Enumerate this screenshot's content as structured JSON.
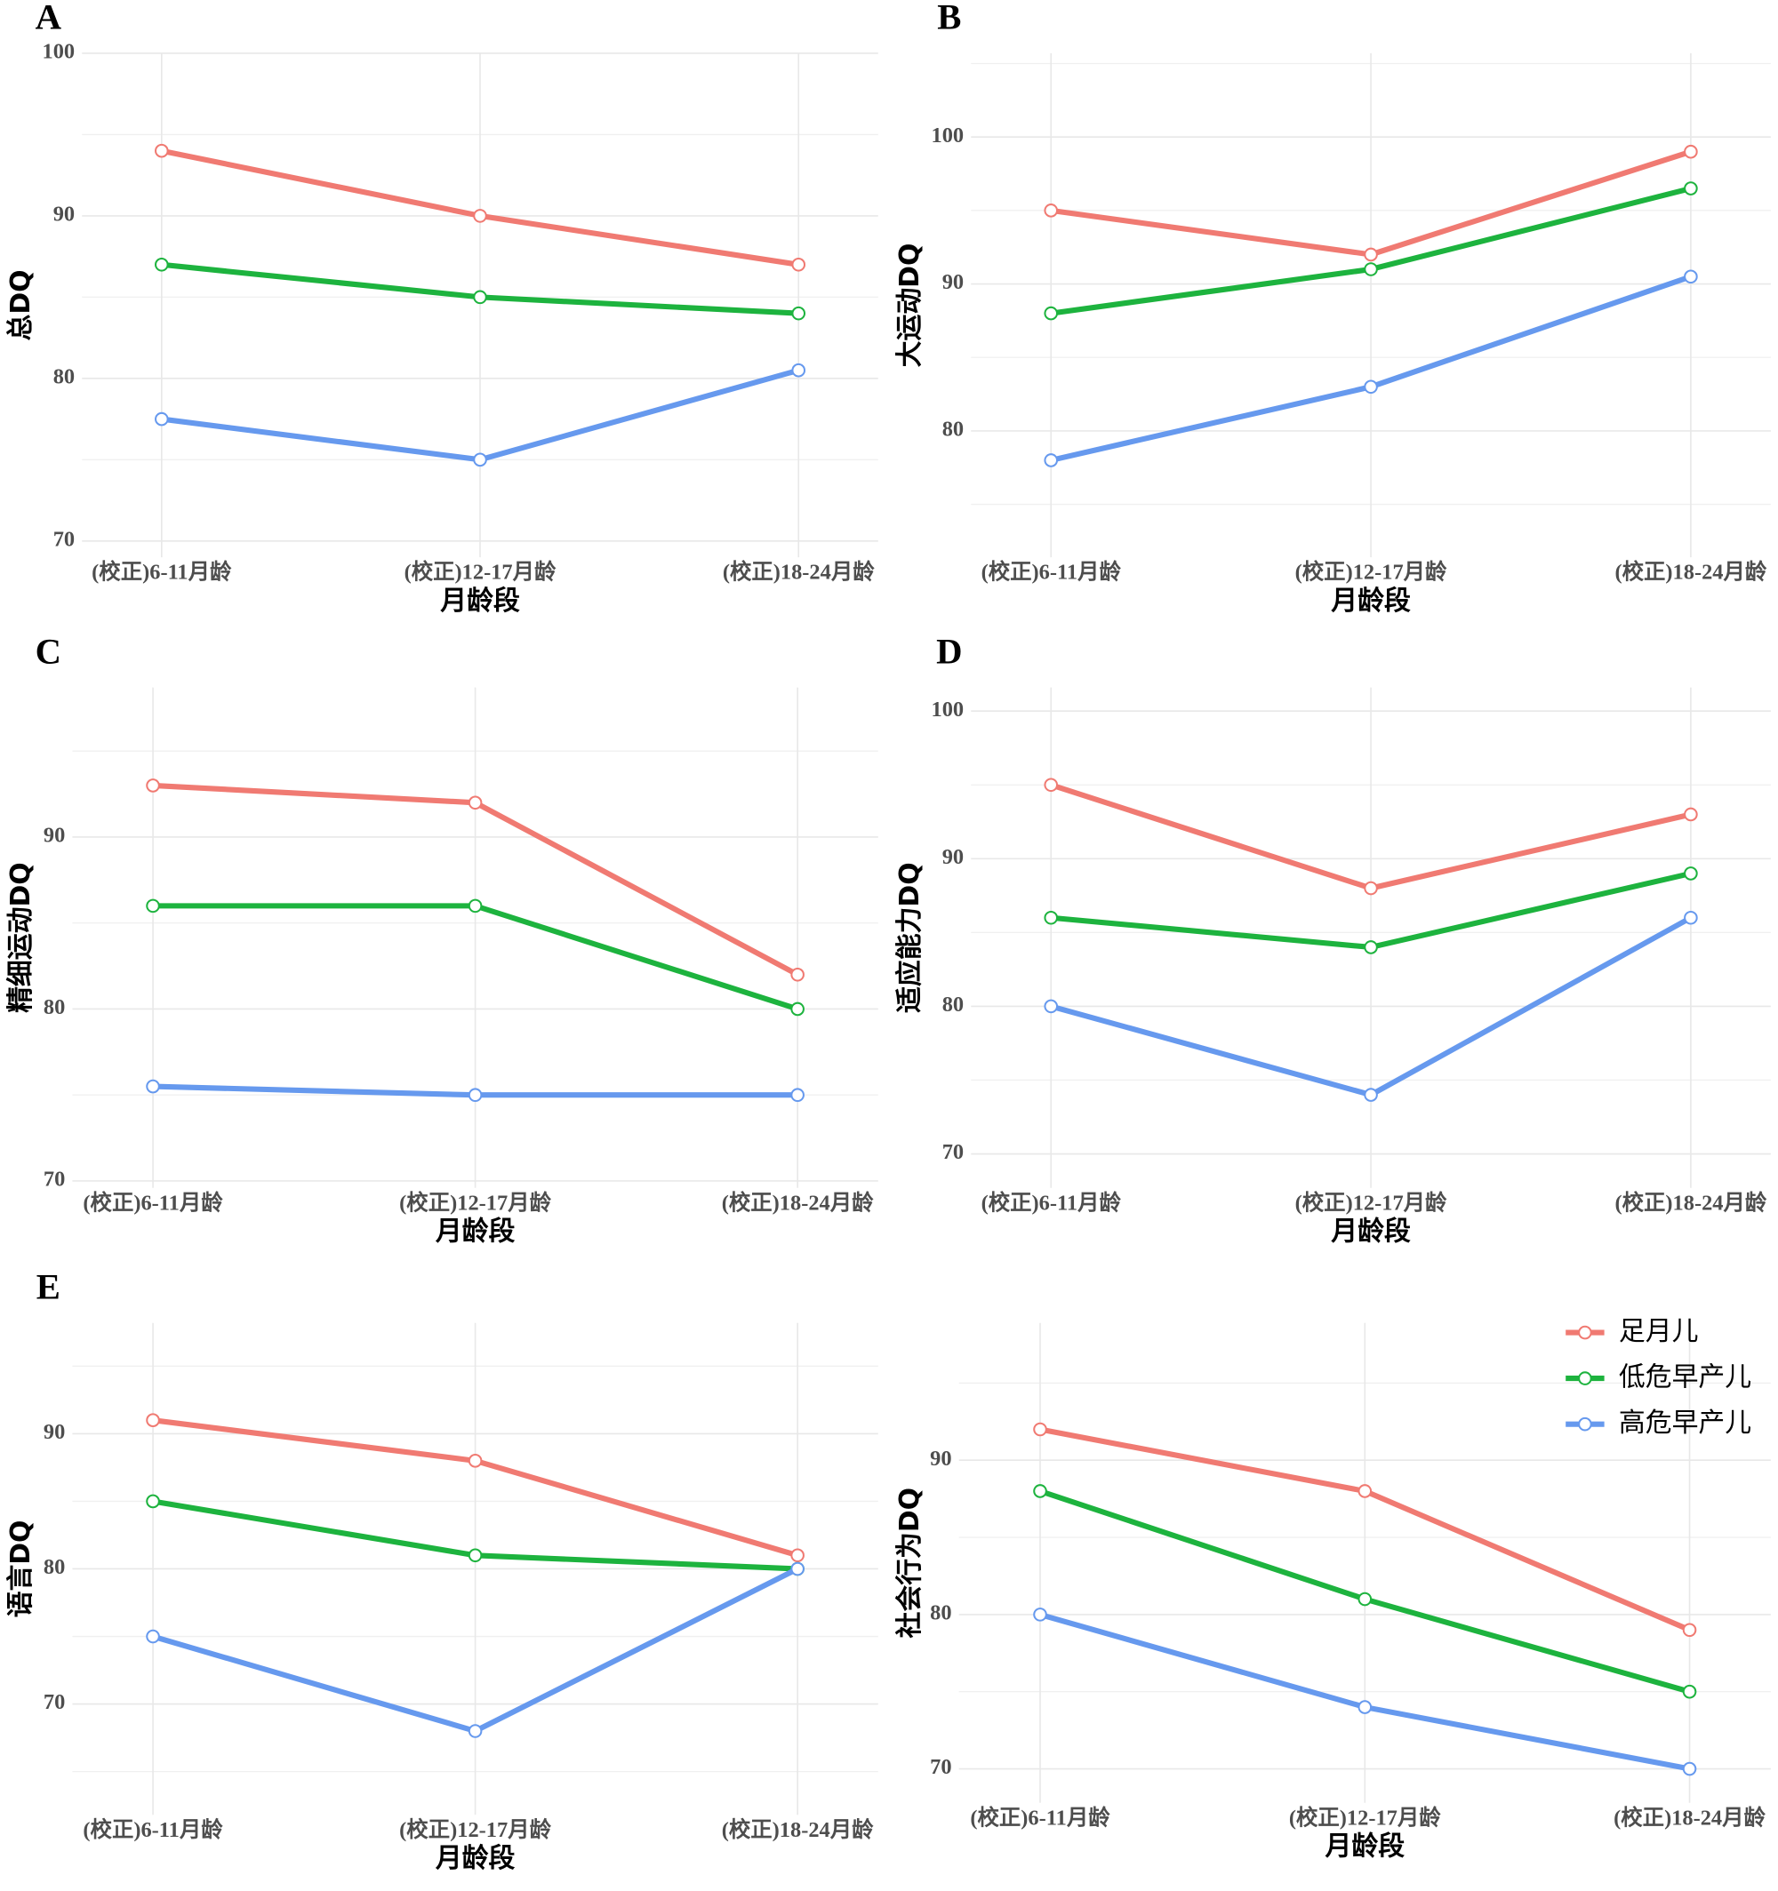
{
  "chart_data": [
    {
      "type": "line",
      "panel": "A",
      "x_label": "月龄段",
      "y_label": "总DQ",
      "categories": [
        "(校正)6-11月龄",
        "(校正)12-17月龄",
        "(校正)18-24月龄"
      ],
      "ylim": [
        69,
        100
      ],
      "yticks": [
        70,
        80,
        90,
        100
      ],
      "grid": true,
      "series": [
        {
          "name": "足月儿",
          "color": "#f07a72",
          "values": [
            94,
            90,
            87
          ]
        },
        {
          "name": "低危早产儿",
          "color": "#1db33e",
          "values": [
            87,
            85,
            84
          ]
        },
        {
          "name": "高危早产儿",
          "color": "#6699ee",
          "values": [
            77.5,
            75,
            80.5
          ]
        }
      ]
    },
    {
      "type": "line",
      "panel": "B",
      "x_label": "月龄段",
      "y_label": "大运动DQ",
      "categories": [
        "(校正)6-11月龄",
        "(校正)12-17月龄",
        "(校正)18-24月龄"
      ],
      "ylim": [
        71.4,
        105.7
      ],
      "yticks": [
        80,
        90,
        100
      ],
      "grid": true,
      "series": [
        {
          "name": "足月儿",
          "color": "#f07a72",
          "values": [
            95,
            92,
            99
          ]
        },
        {
          "name": "低危早产儿",
          "color": "#1db33e",
          "values": [
            88,
            91,
            96.5
          ]
        },
        {
          "name": "高危早产儿",
          "color": "#6699ee",
          "values": [
            78,
            83,
            90.5
          ]
        }
      ]
    },
    {
      "type": "line",
      "panel": "C",
      "x_label": "月龄段",
      "y_label": "精细运动DQ",
      "categories": [
        "(校正)6-11月龄",
        "(校正)12-17月龄",
        "(校正)18-24月龄"
      ],
      "ylim": [
        69.6,
        98.7
      ],
      "yticks": [
        70,
        80,
        90
      ],
      "grid": true,
      "series": [
        {
          "name": "足月儿",
          "color": "#f07a72",
          "values": [
            93,
            92,
            82
          ]
        },
        {
          "name": "低危早产儿",
          "color": "#1db33e",
          "values": [
            86,
            86,
            80
          ]
        },
        {
          "name": "高危早产儿",
          "color": "#6699ee",
          "values": [
            75.5,
            75,
            75
          ]
        }
      ]
    },
    {
      "type": "line",
      "panel": "D",
      "x_label": "月龄段",
      "y_label": "适应能力DQ",
      "categories": [
        "(校正)6-11月龄",
        "(校正)12-17月龄",
        "(校正)18-24月龄"
      ],
      "ylim": [
        67.7,
        101.6
      ],
      "yticks": [
        70,
        80,
        90,
        100
      ],
      "grid": true,
      "series": [
        {
          "name": "足月儿",
          "color": "#f07a72",
          "values": [
            95,
            88,
            93
          ]
        },
        {
          "name": "低危早产儿",
          "color": "#1db33e",
          "values": [
            86,
            84,
            89
          ]
        },
        {
          "name": "高危早产儿",
          "color": "#6699ee",
          "values": [
            80,
            74,
            86
          ]
        }
      ]
    },
    {
      "type": "line",
      "panel": "E",
      "x_label": "月龄段",
      "y_label": "语言DQ",
      "categories": [
        "(校正)6-11月龄",
        "(校正)12-17月龄",
        "(校正)18-24月龄"
      ],
      "ylim": [
        61.8,
        98.2
      ],
      "yticks": [
        70,
        80,
        90
      ],
      "grid": true,
      "series": [
        {
          "name": "足月儿",
          "color": "#f07a72",
          "values": [
            91,
            88,
            81
          ]
        },
        {
          "name": "低危早产儿",
          "color": "#1db33e",
          "values": [
            85,
            81,
            80
          ]
        },
        {
          "name": "高危早产儿",
          "color": "#6699ee",
          "values": [
            75,
            68,
            80
          ]
        }
      ]
    },
    {
      "type": "line",
      "x_label": "月龄段",
      "y_label": "社会行为DQ",
      "categories": [
        "(校正)6-11月龄",
        "(校正)12-17月龄",
        "(校正)18-24月龄"
      ],
      "ylim": [
        67.8,
        98.9
      ],
      "yticks": [
        70,
        80,
        90
      ],
      "grid": true,
      "legend": "top-right",
      "series": [
        {
          "name": "足月儿",
          "color": "#f07a72",
          "values": [
            92,
            88,
            79
          ]
        },
        {
          "name": "低危早产儿",
          "color": "#1db33e",
          "values": [
            88,
            81,
            75
          ]
        },
        {
          "name": "高危早产儿",
          "color": "#6699ee",
          "values": [
            80,
            74,
            70
          ]
        }
      ]
    }
  ]
}
